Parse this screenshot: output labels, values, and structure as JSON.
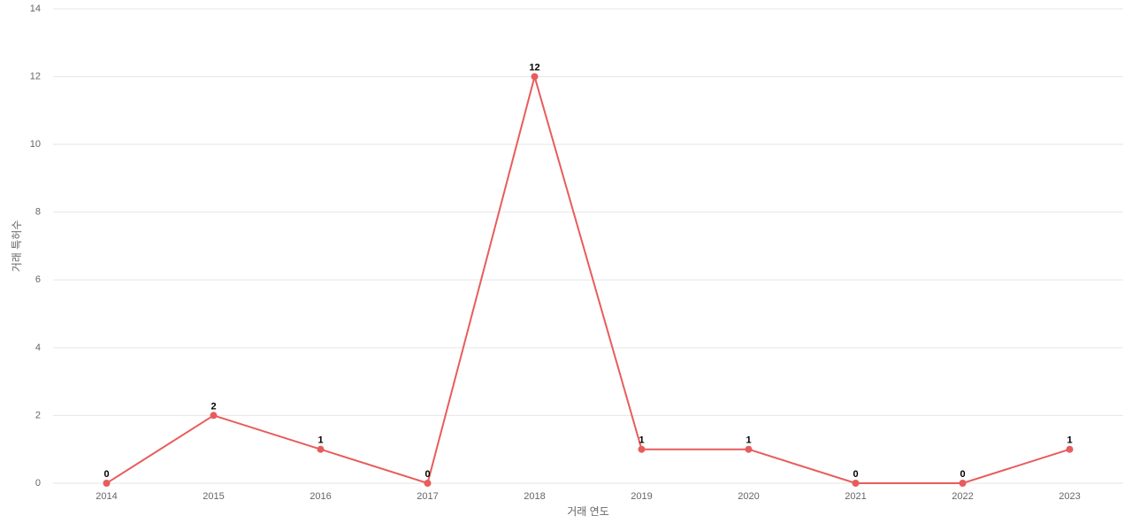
{
  "chart_data": {
    "type": "line",
    "x_label": "거래 연도",
    "y_label": "거래 특허수",
    "categories": [
      "2014",
      "2015",
      "2016",
      "2017",
      "2018",
      "2019",
      "2020",
      "2021",
      "2022",
      "2023"
    ],
    "values": [
      0,
      2,
      1,
      0,
      12,
      1,
      1,
      0,
      0,
      1
    ],
    "color": "#e85c5c",
    "ylim": [
      0,
      14
    ],
    "yticks": [
      0,
      2,
      4,
      6,
      8,
      10,
      12,
      14
    ],
    "grid": true,
    "data_labels": true
  }
}
